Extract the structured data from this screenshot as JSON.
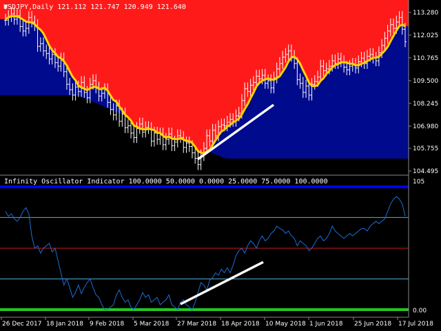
{
  "window": {
    "main_title": "USDJPY,Daily  121.112 121.747 120.949 121.640",
    "indicator_title": "Infinity Oscillator Indicator 100.0000 50.0000 0.0000 25.0000 75.0000 100.0000"
  },
  "colors": {
    "background": "#000000",
    "upper_band": "#ff1a1a",
    "lower_band": "#000a8c",
    "signal_line": "#ffd400",
    "candles": "#ffffff",
    "oscillator": "#1a6fd6",
    "level_100": "#0000ff",
    "level_75": "#4fb0d8",
    "level_50": "#d01818",
    "level_25": "#4fb0d8",
    "level_0": "#22c822",
    "trendline": "#ffffff"
  },
  "chart_data": [
    {
      "type": "line",
      "title": "USDJPY,Daily  121.112 121.747 120.949 121.640",
      "y_ticks": [
        "113.280",
        "112.025",
        "110.765",
        "109.500",
        "108.245",
        "106.980",
        "105.755",
        "104.495"
      ],
      "ylim": [
        104.2,
        113.6
      ],
      "x_count": 138,
      "series": [
        {
          "values": [
            112.85,
            113.05,
            113.2,
            112.9,
            113.1,
            112.5,
            112.25,
            112.4,
            113.0,
            112.75,
            112.55,
            111.4,
            111.55,
            111.15,
            111.0,
            110.7,
            110.95,
            110.5,
            110.3,
            110.7,
            110.0,
            109.3,
            109.0,
            108.7,
            109.15,
            108.9,
            109.4,
            108.85,
            108.55,
            109.3,
            109.5,
            109.1,
            108.65,
            108.8,
            109.0,
            108.3,
            107.9,
            107.6,
            108.1,
            107.25,
            107.65,
            106.9,
            107.0,
            106.6,
            106.35,
            106.85,
            107.1,
            106.65,
            106.9,
            106.85,
            106.15,
            106.6,
            106.25,
            106.55,
            105.95,
            106.25,
            106.55,
            105.9,
            106.1,
            106.45,
            106.35,
            105.8,
            106.05,
            105.85,
            105.5,
            105.2,
            104.85,
            105.35,
            105.75,
            106.45,
            106.15,
            106.75,
            106.45,
            106.95,
            107.05,
            107.0,
            107.2,
            107.35,
            107.25,
            107.55,
            107.7,
            108.4,
            109.05,
            108.9,
            109.25,
            109.4,
            109.75,
            109.6,
            109.8,
            109.35,
            109.5,
            109.1,
            109.65,
            110.15,
            110.45,
            110.8,
            110.95,
            111.15,
            110.85,
            110.45,
            109.55,
            109.35,
            108.85,
            109.2,
            108.7,
            109.3,
            109.45,
            109.7,
            110.3,
            110.05,
            110.15,
            110.3,
            110.6,
            110.45,
            110.7,
            110.55,
            110.25,
            110.1,
            110.3,
            110.4,
            110.2,
            110.55,
            110.75,
            110.45,
            110.85,
            110.95,
            110.75,
            110.6,
            111.05,
            111.45,
            111.85,
            112.25,
            112.6,
            112.4,
            112.75,
            113.0,
            112.35,
            111.65
          ]
        }
      ]
    },
    {
      "type": "line",
      "title": "Infinity Oscillator Indicator 100.0000 50.0000 0.0000 25.0000 75.0000 100.0000",
      "y_ticks": [
        "105",
        "0.00"
      ],
      "levels": [
        100,
        75,
        50,
        25,
        0
      ],
      "ylim": [
        0,
        105
      ],
      "x_count": 138,
      "series": [
        {
          "values": [
            80,
            76,
            78,
            74,
            72,
            75,
            80,
            83,
            78,
            60,
            50,
            52,
            46,
            50,
            52,
            54,
            47,
            50,
            40,
            30,
            20,
            25,
            18,
            10,
            14,
            20,
            13,
            18,
            22,
            25,
            18,
            12,
            10,
            4,
            0,
            0,
            2,
            4,
            12,
            16,
            10,
            6,
            8,
            2,
            0,
            4,
            8,
            14,
            10,
            12,
            6,
            8,
            10,
            4,
            6,
            8,
            12,
            4,
            2,
            0,
            6,
            8,
            4,
            2,
            0,
            6,
            14,
            22,
            20,
            16,
            24,
            26,
            30,
            28,
            33,
            30,
            34,
            30,
            36,
            44,
            48,
            50,
            46,
            52,
            56,
            54,
            50,
            56,
            60,
            56,
            58,
            62,
            64,
            68,
            66,
            65,
            62,
            64,
            60,
            58,
            52,
            56,
            54,
            52,
            48,
            50,
            54,
            58,
            60,
            56,
            58,
            62,
            68,
            64,
            62,
            60,
            58,
            60,
            62,
            60,
            62,
            64,
            66,
            66,
            64,
            68,
            70,
            72,
            70,
            72,
            74,
            80,
            86,
            90,
            92,
            90,
            86,
            76
          ]
        }
      ]
    }
  ],
  "x_axis": {
    "labels": [
      "26 Dec 2017",
      "18 Jan 2018",
      "9 Feb 2018",
      "5 Mar 2018",
      "27 Mar 2018",
      "18 Apr 2018",
      "10 May 2018",
      "1 Jun 2018",
      "25 Jun 2018",
      "17 Jul 2018"
    ]
  }
}
